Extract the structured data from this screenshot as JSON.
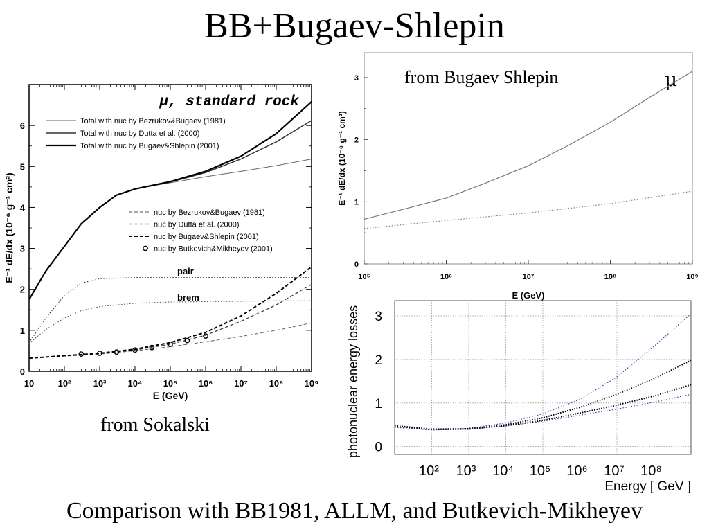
{
  "slide": {
    "title": "BB+Bugaev-Shlepin",
    "caption": "Comparison with BB1981, ALLM, and Butkevich-Mikheyev",
    "left_note": "from Sokalski"
  },
  "chart_data": [
    {
      "type": "line",
      "title": "μ, standard rock",
      "xlabel": "E (GeV)",
      "ylabel": "E⁻¹ dE/dx (10⁻⁶ g⁻¹ cm²)",
      "xscale": "log",
      "xlim": [
        10,
        1000000000
      ],
      "ylim": [
        0,
        7
      ],
      "x_tick_labels": [
        "10",
        "10²",
        "10³",
        "10⁴",
        "10⁵",
        "10⁶",
        "10⁷",
        "10⁸",
        "10⁹"
      ],
      "y_tick_labels": [
        "0",
        "1",
        "2",
        "3",
        "4",
        "5",
        "6"
      ],
      "annotations": [
        "pair",
        "brem"
      ],
      "series": [
        {
          "name": "Total with nuc by Bezrukov&Bugaev (1981)",
          "style": "solid-thin",
          "color": "#666666",
          "x": [
            10,
            30,
            100,
            300,
            1000,
            3000,
            10000,
            100000,
            1000000,
            10000000,
            100000000,
            1000000000
          ],
          "y": [
            1.75,
            2.45,
            3.05,
            3.6,
            4.0,
            4.3,
            4.45,
            4.6,
            4.75,
            4.88,
            5.02,
            5.18
          ]
        },
        {
          "name": "Total with nuc by Dutta et al. (2000)",
          "style": "solid-medium",
          "color": "#333333",
          "x": [
            10,
            30,
            100,
            300,
            1000,
            3000,
            10000,
            100000,
            1000000,
            10000000,
            100000000,
            1000000000
          ],
          "y": [
            1.75,
            2.45,
            3.05,
            3.6,
            4.0,
            4.3,
            4.45,
            4.62,
            4.85,
            5.18,
            5.6,
            6.12
          ]
        },
        {
          "name": "Total with nuc by Bugaev&Shlepin (2001)",
          "style": "solid-thick",
          "color": "#000000",
          "x": [
            10,
            30,
            100,
            300,
            1000,
            3000,
            10000,
            100000,
            1000000,
            10000000,
            100000000,
            1000000000
          ],
          "y": [
            1.75,
            2.45,
            3.05,
            3.6,
            4.0,
            4.3,
            4.45,
            4.63,
            4.88,
            5.25,
            5.8,
            6.58
          ]
        },
        {
          "name": "nuc by Bezrukov&Bugaev (1981)",
          "style": "dashed-thin",
          "color": "#555555",
          "x": [
            10,
            100,
            1000,
            10000,
            100000,
            1000000,
            10000000,
            100000000,
            1000000000
          ],
          "y": [
            0.32,
            0.37,
            0.42,
            0.5,
            0.6,
            0.72,
            0.85,
            1.0,
            1.18
          ]
        },
        {
          "name": "nuc by Dutta et al. (2000)",
          "style": "dashed",
          "color": "#333333",
          "x": [
            10,
            100,
            1000,
            10000,
            100000,
            1000000,
            10000000,
            100000000,
            1000000000
          ],
          "y": [
            0.32,
            0.38,
            0.43,
            0.52,
            0.66,
            0.88,
            1.22,
            1.62,
            2.12
          ]
        },
        {
          "name": "nuc by Bugaev&Shlepin (2001)",
          "style": "dashed-thick",
          "color": "#000000",
          "x": [
            10,
            100,
            1000,
            10000,
            100000,
            1000000,
            10000000,
            100000000,
            1000000000
          ],
          "y": [
            0.32,
            0.38,
            0.44,
            0.54,
            0.7,
            0.95,
            1.35,
            1.9,
            2.55
          ]
        },
        {
          "name": "nuc by Butkevich&Mikheyev (2001)",
          "style": "circles",
          "color": "#000000",
          "x": [
            300,
            1000,
            3000,
            10000,
            30000,
            100000,
            300000,
            1000000
          ],
          "y": [
            0.42,
            0.44,
            0.47,
            0.52,
            0.58,
            0.66,
            0.75,
            0.86
          ]
        },
        {
          "name": "pair",
          "style": "dotted",
          "color": "#333333",
          "x": [
            10,
            30,
            100,
            300,
            1000,
            10000,
            100000,
            1000000,
            10000000,
            100000000,
            1000000000
          ],
          "y": [
            0.7,
            1.3,
            1.85,
            2.15,
            2.26,
            2.29,
            2.29,
            2.29,
            2.29,
            2.29,
            2.29
          ]
        },
        {
          "name": "brem",
          "style": "dotted",
          "color": "#555555",
          "x": [
            10,
            30,
            100,
            300,
            1000,
            10000,
            100000,
            1000000,
            10000000,
            100000000,
            1000000000
          ],
          "y": [
            0.68,
            1.02,
            1.3,
            1.48,
            1.58,
            1.66,
            1.69,
            1.7,
            1.71,
            1.72,
            1.72
          ]
        }
      ]
    },
    {
      "type": "line",
      "title": "from Bugaev Shlepin",
      "corner_label": "μ",
      "xlabel": "E (GeV)",
      "ylabel": "E⁻¹ dE/dx (10⁻⁶ g⁻¹ cm²)",
      "xscale": "log",
      "xlim": [
        100000,
        1000000000
      ],
      "ylim": [
        0,
        3.4
      ],
      "x_tick_labels": [
        "10⁵",
        "10⁶",
        "10⁷",
        "10⁸",
        "10⁹"
      ],
      "y_tick_labels": [
        "0",
        "1",
        "2",
        "3"
      ],
      "series": [
        {
          "style": "solid",
          "color": "#777777",
          "x": [
            100000,
            300000,
            1000000,
            3000000,
            10000000,
            30000000,
            100000000,
            300000000,
            1000000000
          ],
          "y": [
            0.72,
            0.88,
            1.06,
            1.3,
            1.58,
            1.9,
            2.28,
            2.68,
            3.1
          ]
        },
        {
          "style": "dotted",
          "color": "#777777",
          "x": [
            100000,
            1000000,
            10000000,
            100000000,
            1000000000
          ],
          "y": [
            0.57,
            0.7,
            0.82,
            0.97,
            1.17
          ]
        }
      ]
    },
    {
      "type": "line",
      "xlabel": "Energy [ GeV ]",
      "ylabel": "photonuclear energy losses",
      "xscale": "log",
      "xlim": [
        10,
        1000000000
      ],
      "ylim": [
        -0.18,
        3.35
      ],
      "x_tick_labels": [
        "10²",
        "10³",
        "10⁴",
        "10⁵",
        "10⁶",
        "10⁷",
        "10⁸"
      ],
      "y_tick_labels": [
        "0",
        "1",
        "2",
        "3"
      ],
      "grid": true,
      "series": [
        {
          "style": "dotted",
          "color": "#3333aa",
          "x": [
            10,
            100,
            1000,
            10000,
            100000,
            1000000,
            10000000,
            100000000,
            1000000000
          ],
          "y": [
            0.45,
            0.38,
            0.42,
            0.54,
            0.75,
            1.08,
            1.6,
            2.3,
            3.05
          ]
        },
        {
          "style": "dotted-thick",
          "color": "#000000",
          "x": [
            10,
            100,
            1000,
            10000,
            100000,
            1000000,
            10000000,
            100000000,
            1000000000
          ],
          "y": [
            0.48,
            0.4,
            0.41,
            0.5,
            0.66,
            0.9,
            1.2,
            1.56,
            1.98
          ]
        },
        {
          "style": "dotted-thick",
          "color": "#000000",
          "x": [
            10,
            100,
            1000,
            10000,
            100000,
            1000000,
            10000000,
            100000000,
            1000000000
          ],
          "y": [
            0.47,
            0.39,
            0.4,
            0.48,
            0.6,
            0.77,
            0.95,
            1.16,
            1.42
          ]
        },
        {
          "style": "dotted",
          "color": "#3333aa",
          "x": [
            10,
            100,
            1000,
            10000,
            100000,
            1000000,
            10000000,
            100000000,
            1000000000
          ],
          "y": [
            0.44,
            0.38,
            0.4,
            0.47,
            0.58,
            0.72,
            0.86,
            1.02,
            1.2
          ]
        }
      ]
    }
  ]
}
